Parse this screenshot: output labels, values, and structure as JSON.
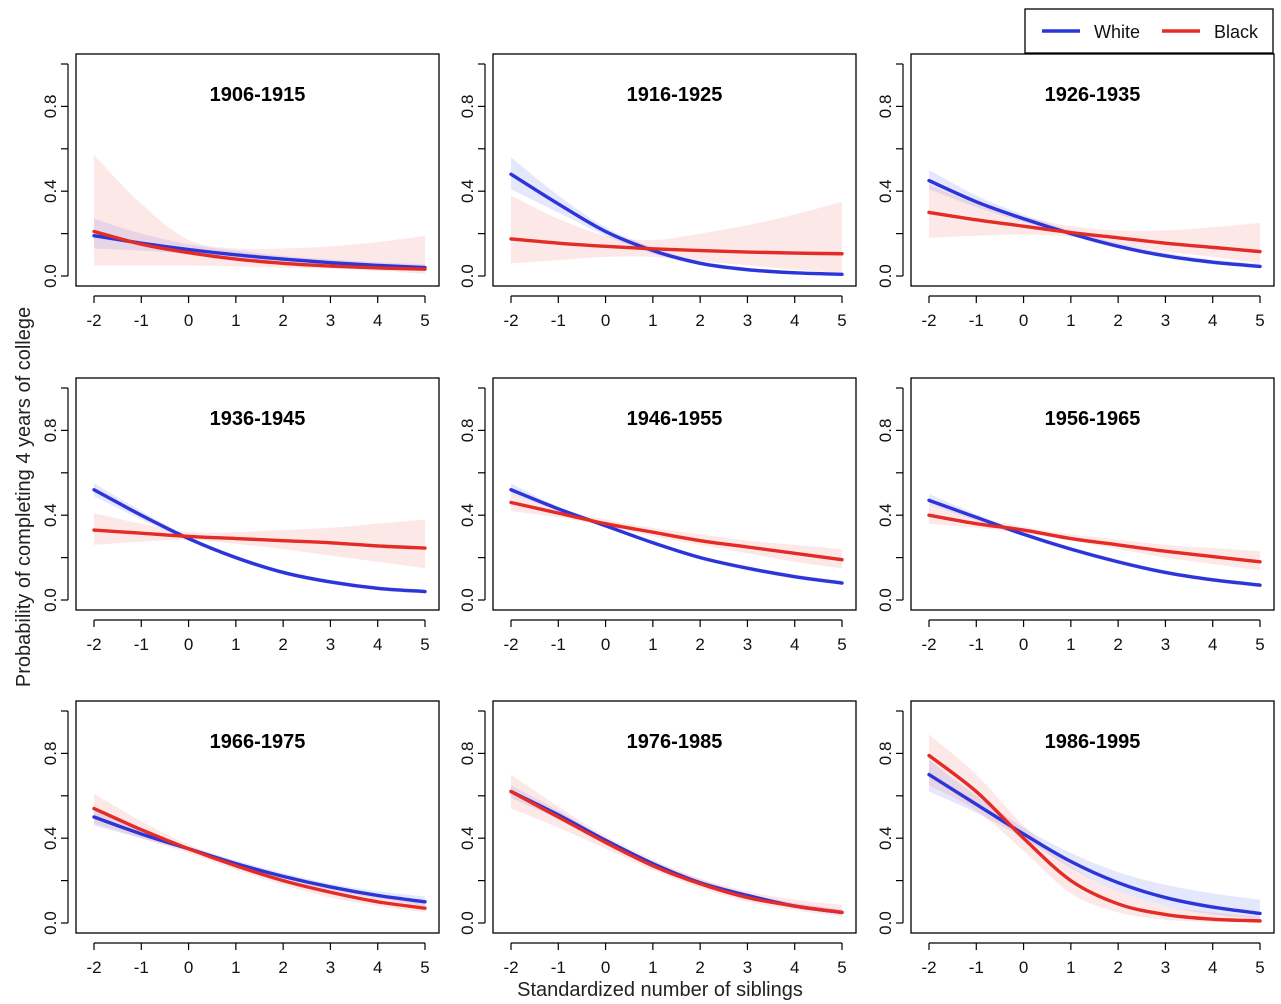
{
  "figure": {
    "ylabel": "Probability of completing 4 years of college",
    "xlabel": "Standardized number of siblings",
    "legend": {
      "position": "top-right",
      "entries": [
        {
          "label": "White",
          "color": "#2b35d9"
        },
        {
          "label": "Black",
          "color": "#e42b25"
        }
      ]
    }
  },
  "chart_data": [
    {
      "type": "line",
      "title": "1906-1915",
      "x": [
        -2,
        -1,
        0,
        1,
        2,
        3,
        4,
        5
      ],
      "xlim": [
        -2,
        5
      ],
      "ylim": [
        0,
        1
      ],
      "yticks": [
        0.0,
        0.4,
        0.8
      ],
      "grid": false,
      "series": [
        {
          "name": "White",
          "color": "#2b35d9",
          "values": [
            0.19,
            0.155,
            0.125,
            0.1,
            0.08,
            0.063,
            0.05,
            0.04
          ],
          "ci_lower": [
            0.13,
            0.12,
            0.105,
            0.085,
            0.068,
            0.052,
            0.04,
            0.03
          ],
          "ci_upper": [
            0.27,
            0.2,
            0.15,
            0.12,
            0.095,
            0.078,
            0.065,
            0.055
          ]
        },
        {
          "name": "Black",
          "color": "#e42b25",
          "values": [
            0.21,
            0.15,
            0.11,
            0.08,
            0.06,
            0.047,
            0.038,
            0.032
          ],
          "ci_lower": [
            0.05,
            0.05,
            0.05,
            0.045,
            0.04,
            0.035,
            0.025,
            0.01
          ],
          "ci_upper": [
            0.57,
            0.34,
            0.17,
            0.13,
            0.13,
            0.14,
            0.16,
            0.19
          ]
        }
      ]
    },
    {
      "type": "line",
      "title": "1916-1925",
      "x": [
        -2,
        -1,
        0,
        1,
        2,
        3,
        4,
        5
      ],
      "xlim": [
        -2,
        5
      ],
      "ylim": [
        0,
        1
      ],
      "yticks": [
        0.0,
        0.4,
        0.8
      ],
      "grid": false,
      "series": [
        {
          "name": "White",
          "color": "#2b35d9",
          "values": [
            0.48,
            0.34,
            0.21,
            0.12,
            0.06,
            0.03,
            0.015,
            0.008
          ],
          "ci_lower": [
            0.41,
            0.3,
            0.19,
            0.105,
            0.05,
            0.02,
            0.008,
            0.003
          ],
          "ci_upper": [
            0.56,
            0.38,
            0.23,
            0.135,
            0.07,
            0.04,
            0.022,
            0.013
          ]
        },
        {
          "name": "Black",
          "color": "#e42b25",
          "values": [
            0.175,
            0.155,
            0.14,
            0.128,
            0.12,
            0.113,
            0.108,
            0.105
          ],
          "ci_lower": [
            0.06,
            0.075,
            0.09,
            0.09,
            0.07,
            0.05,
            0.03,
            0.015
          ],
          "ci_upper": [
            0.38,
            0.27,
            0.19,
            0.17,
            0.2,
            0.24,
            0.29,
            0.35
          ]
        }
      ]
    },
    {
      "type": "line",
      "title": "1926-1935",
      "x": [
        -2,
        -1,
        0,
        1,
        2,
        3,
        4,
        5
      ],
      "xlim": [
        -2,
        5
      ],
      "ylim": [
        0,
        1
      ],
      "yticks": [
        0.0,
        0.4,
        0.8
      ],
      "grid": false,
      "series": [
        {
          "name": "White",
          "color": "#2b35d9",
          "values": [
            0.45,
            0.35,
            0.27,
            0.2,
            0.14,
            0.095,
            0.065,
            0.045
          ],
          "ci_lower": [
            0.41,
            0.325,
            0.255,
            0.19,
            0.13,
            0.085,
            0.055,
            0.035
          ],
          "ci_upper": [
            0.5,
            0.38,
            0.29,
            0.215,
            0.155,
            0.11,
            0.078,
            0.058
          ]
        },
        {
          "name": "Black",
          "color": "#e42b25",
          "values": [
            0.3,
            0.265,
            0.235,
            0.205,
            0.18,
            0.155,
            0.135,
            0.115
          ],
          "ci_lower": [
            0.18,
            0.19,
            0.195,
            0.185,
            0.15,
            0.115,
            0.09,
            0.06
          ],
          "ci_upper": [
            0.43,
            0.34,
            0.28,
            0.235,
            0.215,
            0.215,
            0.23,
            0.25
          ]
        }
      ]
    },
    {
      "type": "line",
      "title": "1936-1945",
      "x": [
        -2,
        -1,
        0,
        1,
        2,
        3,
        4,
        5
      ],
      "xlim": [
        -2,
        5
      ],
      "ylim": [
        0,
        1
      ],
      "yticks": [
        0.0,
        0.4,
        0.8
      ],
      "grid": false,
      "series": [
        {
          "name": "White",
          "color": "#2b35d9",
          "values": [
            0.52,
            0.4,
            0.29,
            0.2,
            0.13,
            0.085,
            0.055,
            0.04
          ],
          "ci_lower": [
            0.49,
            0.38,
            0.28,
            0.19,
            0.12,
            0.075,
            0.045,
            0.03
          ],
          "ci_upper": [
            0.55,
            0.42,
            0.3,
            0.21,
            0.14,
            0.095,
            0.065,
            0.05
          ]
        },
        {
          "name": "Black",
          "color": "#e42b25",
          "values": [
            0.33,
            0.315,
            0.3,
            0.29,
            0.28,
            0.27,
            0.255,
            0.245
          ],
          "ci_lower": [
            0.26,
            0.275,
            0.285,
            0.265,
            0.24,
            0.21,
            0.18,
            0.15
          ],
          "ci_upper": [
            0.41,
            0.36,
            0.32,
            0.32,
            0.33,
            0.34,
            0.36,
            0.38
          ]
        }
      ]
    },
    {
      "type": "line",
      "title": "1946-1955",
      "x": [
        -2,
        -1,
        0,
        1,
        2,
        3,
        4,
        5
      ],
      "xlim": [
        -2,
        5
      ],
      "ylim": [
        0,
        1
      ],
      "yticks": [
        0.0,
        0.4,
        0.8
      ],
      "grid": false,
      "series": [
        {
          "name": "White",
          "color": "#2b35d9",
          "values": [
            0.52,
            0.43,
            0.35,
            0.27,
            0.2,
            0.15,
            0.11,
            0.08
          ],
          "ci_lower": [
            0.5,
            0.42,
            0.34,
            0.265,
            0.195,
            0.14,
            0.1,
            0.07
          ],
          "ci_upper": [
            0.55,
            0.44,
            0.36,
            0.28,
            0.21,
            0.16,
            0.12,
            0.09
          ]
        },
        {
          "name": "Black",
          "color": "#e42b25",
          "values": [
            0.46,
            0.41,
            0.36,
            0.32,
            0.28,
            0.25,
            0.22,
            0.19
          ],
          "ci_lower": [
            0.42,
            0.39,
            0.35,
            0.3,
            0.26,
            0.22,
            0.18,
            0.15
          ],
          "ci_upper": [
            0.5,
            0.43,
            0.38,
            0.34,
            0.31,
            0.28,
            0.26,
            0.24
          ]
        }
      ]
    },
    {
      "type": "line",
      "title": "1956-1965",
      "x": [
        -2,
        -1,
        0,
        1,
        2,
        3,
        4,
        5
      ],
      "xlim": [
        -2,
        5
      ],
      "ylim": [
        0,
        1
      ],
      "yticks": [
        0.0,
        0.4,
        0.8
      ],
      "grid": false,
      "series": [
        {
          "name": "White",
          "color": "#2b35d9",
          "values": [
            0.47,
            0.39,
            0.31,
            0.24,
            0.18,
            0.13,
            0.095,
            0.07
          ],
          "ci_lower": [
            0.45,
            0.375,
            0.3,
            0.23,
            0.17,
            0.12,
            0.085,
            0.06
          ],
          "ci_upper": [
            0.5,
            0.405,
            0.32,
            0.25,
            0.19,
            0.14,
            0.105,
            0.08
          ]
        },
        {
          "name": "Black",
          "color": "#e42b25",
          "values": [
            0.4,
            0.36,
            0.33,
            0.29,
            0.26,
            0.23,
            0.205,
            0.18
          ],
          "ci_lower": [
            0.36,
            0.34,
            0.315,
            0.28,
            0.24,
            0.2,
            0.17,
            0.14
          ],
          "ci_upper": [
            0.45,
            0.39,
            0.345,
            0.31,
            0.285,
            0.26,
            0.245,
            0.23
          ]
        }
      ]
    },
    {
      "type": "line",
      "title": "1966-1975",
      "x": [
        -2,
        -1,
        0,
        1,
        2,
        3,
        4,
        5
      ],
      "xlim": [
        -2,
        5
      ],
      "ylim": [
        0,
        1
      ],
      "yticks": [
        0.0,
        0.4,
        0.8
      ],
      "grid": false,
      "series": [
        {
          "name": "White",
          "color": "#2b35d9",
          "values": [
            0.5,
            0.42,
            0.35,
            0.28,
            0.22,
            0.17,
            0.13,
            0.1
          ],
          "ci_lower": [
            0.46,
            0.4,
            0.34,
            0.27,
            0.21,
            0.155,
            0.115,
            0.08
          ],
          "ci_upper": [
            0.54,
            0.44,
            0.36,
            0.295,
            0.235,
            0.185,
            0.15,
            0.125
          ]
        },
        {
          "name": "Black",
          "color": "#e42b25",
          "values": [
            0.54,
            0.44,
            0.35,
            0.27,
            0.2,
            0.145,
            0.1,
            0.07
          ],
          "ci_lower": [
            0.47,
            0.4,
            0.33,
            0.25,
            0.18,
            0.12,
            0.08,
            0.05
          ],
          "ci_upper": [
            0.61,
            0.48,
            0.37,
            0.29,
            0.22,
            0.17,
            0.125,
            0.095
          ]
        }
      ]
    },
    {
      "type": "line",
      "title": "1976-1985",
      "x": [
        -2,
        -1,
        0,
        1,
        2,
        3,
        4,
        5
      ],
      "xlim": [
        -2,
        5
      ],
      "ylim": [
        0,
        1
      ],
      "yticks": [
        0.0,
        0.4,
        0.8
      ],
      "grid": false,
      "series": [
        {
          "name": "White",
          "color": "#2b35d9",
          "values": [
            0.62,
            0.51,
            0.39,
            0.28,
            0.19,
            0.13,
            0.08,
            0.05
          ],
          "ci_lower": [
            0.59,
            0.49,
            0.38,
            0.27,
            0.18,
            0.12,
            0.07,
            0.04
          ],
          "ci_upper": [
            0.65,
            0.53,
            0.4,
            0.29,
            0.205,
            0.14,
            0.095,
            0.065
          ]
        },
        {
          "name": "Black",
          "color": "#e42b25",
          "values": [
            0.62,
            0.5,
            0.38,
            0.27,
            0.185,
            0.12,
            0.08,
            0.05
          ],
          "ci_lower": [
            0.54,
            0.45,
            0.35,
            0.25,
            0.165,
            0.1,
            0.06,
            0.03
          ],
          "ci_upper": [
            0.7,
            0.55,
            0.41,
            0.3,
            0.21,
            0.15,
            0.11,
            0.085
          ]
        }
      ]
    },
    {
      "type": "line",
      "title": "1986-1995",
      "x": [
        -2,
        -1,
        0,
        1,
        2,
        3,
        4,
        5
      ],
      "xlim": [
        -2,
        5
      ],
      "ylim": [
        0,
        1
      ],
      "yticks": [
        0.0,
        0.4,
        0.8
      ],
      "grid": false,
      "series": [
        {
          "name": "White",
          "color": "#2b35d9",
          "values": [
            0.7,
            0.56,
            0.42,
            0.29,
            0.19,
            0.12,
            0.075,
            0.045
          ],
          "ci_lower": [
            0.62,
            0.52,
            0.4,
            0.26,
            0.15,
            0.08,
            0.04,
            0.02
          ],
          "ci_upper": [
            0.77,
            0.6,
            0.45,
            0.33,
            0.24,
            0.18,
            0.14,
            0.11
          ]
        },
        {
          "name": "Black",
          "color": "#e42b25",
          "values": [
            0.79,
            0.62,
            0.4,
            0.2,
            0.09,
            0.04,
            0.018,
            0.01
          ],
          "ci_lower": [
            0.65,
            0.53,
            0.34,
            0.14,
            0.05,
            0.015,
            0.005,
            0.002
          ],
          "ci_upper": [
            0.89,
            0.7,
            0.46,
            0.27,
            0.15,
            0.08,
            0.05,
            0.03
          ]
        }
      ]
    }
  ]
}
